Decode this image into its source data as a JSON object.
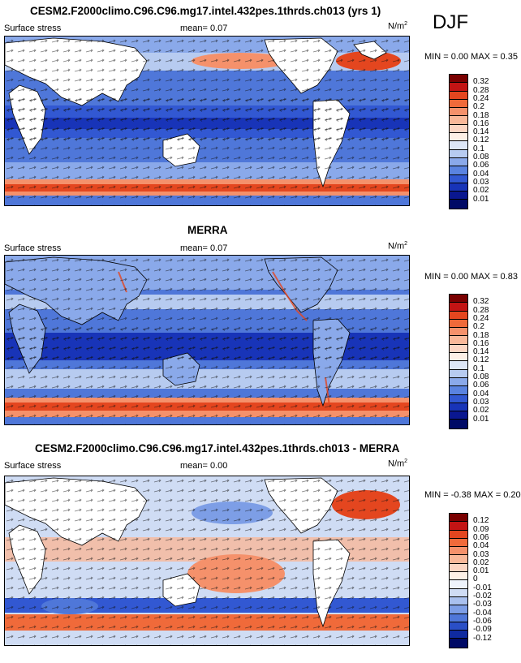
{
  "season": "DJF",
  "panels": [
    {
      "title": "CESM2.F2000climo.C96.C96.mg17.intel.432pes.1thrds.ch013 (yrs 1)",
      "variable": "Surface stress",
      "mean_label": "mean=  0.07",
      "units": "N/m",
      "units_sup": "2",
      "minmax": "MIN =  0.00 MAX =  0.35",
      "colorbar_labels": [
        "0.32",
        "0.28",
        "0.24",
        "0.2",
        "0.18",
        "0.16",
        "0.14",
        "0.12",
        "0.1",
        "0.08",
        "0.06",
        "0.04",
        "0.03",
        "0.02",
        "0.01"
      ],
      "colorbar_colors": [
        "#7a0000",
        "#c31414",
        "#e4461f",
        "#f06a3a",
        "#f5916b",
        "#f9b899",
        "#fcd6c3",
        "#fdf0e6",
        "#dde6f6",
        "#b7cbf0",
        "#8aa9ea",
        "#5a83e0",
        "#3258d2",
        "#1834b8",
        "#0a1790",
        "#000a66"
      ]
    },
    {
      "title": "MERRA",
      "variable": "Surface stress",
      "mean_label": "mean=  0.07",
      "units": "N/m",
      "units_sup": "2",
      "minmax": "MIN =  0.00 MAX =  0.83",
      "colorbar_labels": [
        "0.32",
        "0.28",
        "0.24",
        "0.2",
        "0.18",
        "0.16",
        "0.14",
        "0.12",
        "0.1",
        "0.08",
        "0.06",
        "0.04",
        "0.03",
        "0.02",
        "0.01"
      ],
      "colorbar_colors": [
        "#7a0000",
        "#c31414",
        "#e4461f",
        "#f06a3a",
        "#f5916b",
        "#f9b899",
        "#fcd6c3",
        "#fdf0e6",
        "#dde6f6",
        "#b7cbf0",
        "#8aa9ea",
        "#5a83e0",
        "#3258d2",
        "#1834b8",
        "#0a1790",
        "#000a66"
      ]
    },
    {
      "title": "CESM2.F2000climo.C96.C96.mg17.intel.432pes.1thrds.ch013 - MERRA",
      "variable": "Surface stress",
      "mean_label": "mean=  0.00",
      "units": "N/m",
      "units_sup": "2",
      "minmax": "MIN = -0.38 MAX =  0.20",
      "colorbar_labels": [
        "0.12",
        "0.09",
        "0.06",
        "0.04",
        "0.03",
        "0.02",
        "0.01",
        "0",
        "-0.01",
        "-0.02",
        "-0.03",
        "-0.04",
        "-0.06",
        "-0.09",
        "-0.12"
      ],
      "colorbar_colors": [
        "#7a0000",
        "#c31414",
        "#e4461f",
        "#f06a3a",
        "#f5916b",
        "#f9b899",
        "#fcd6c3",
        "#fdf0e6",
        "#eef3fb",
        "#cfdcf4",
        "#a9c0ee",
        "#7d9ee6",
        "#4f77d9",
        "#2a4fc6",
        "#0f2aa0",
        "#000a66"
      ]
    }
  ]
}
